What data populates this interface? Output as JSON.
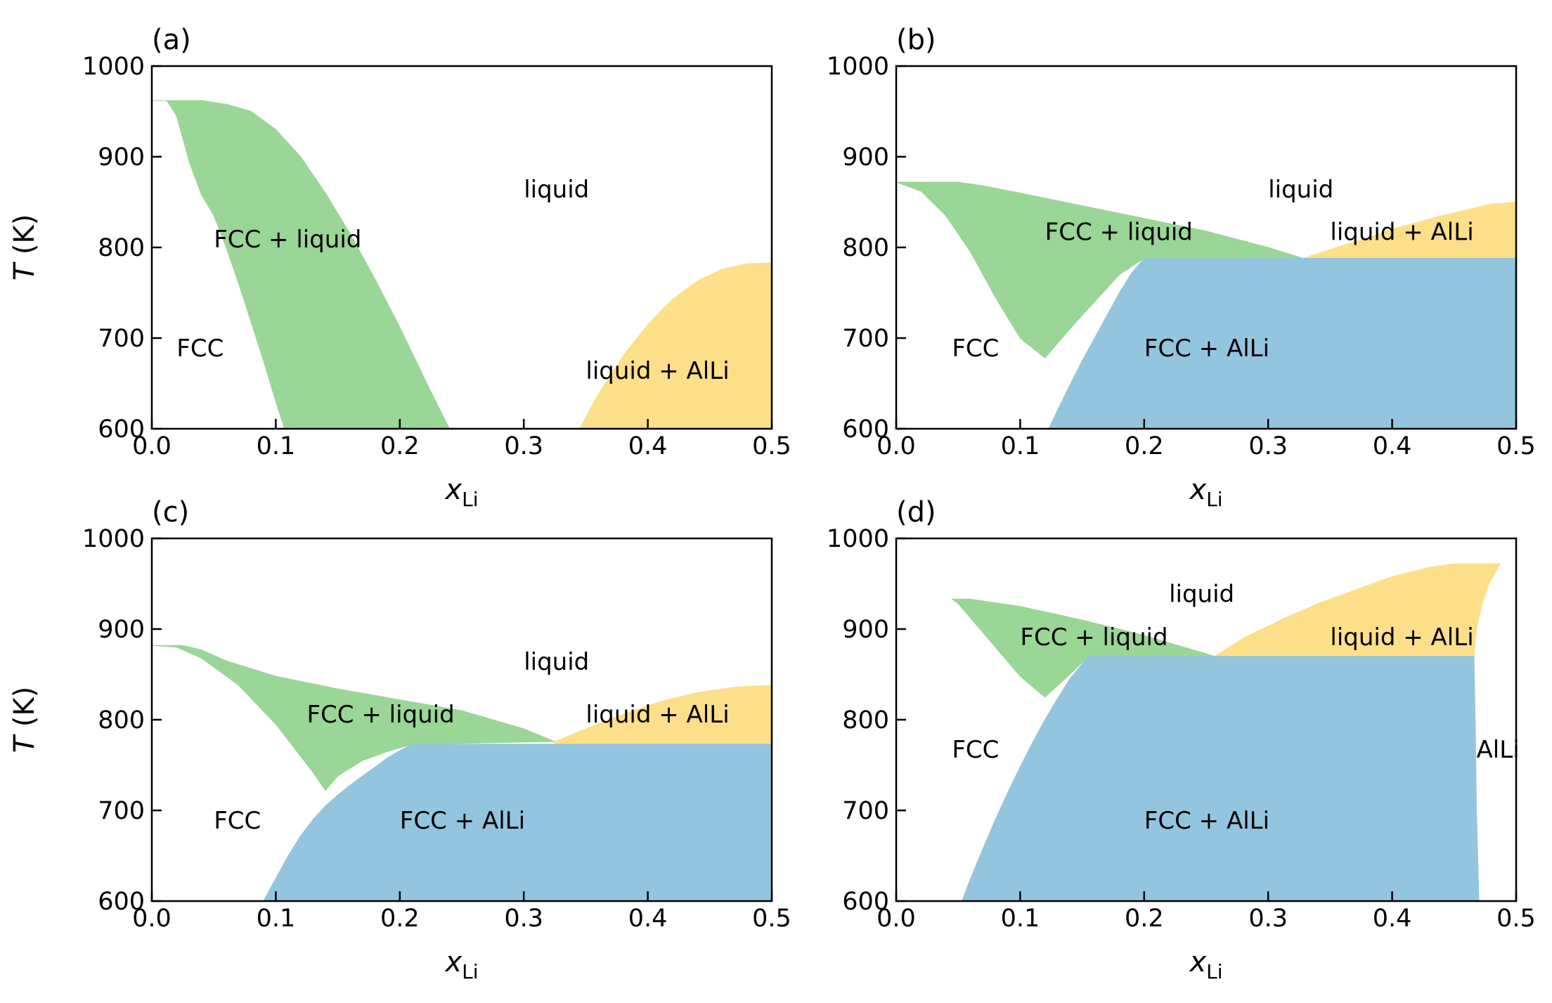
{
  "colors": {
    "fcc_liquid": "#9ad695",
    "liquid_alli": "#fddf8a",
    "fcc_alli": "#94c5de",
    "axis": "#000000"
  },
  "chart_data": [
    {
      "type": "area",
      "panel_label": "(a)",
      "xlabel": "x",
      "xlabel_sub": "Li",
      "ylabel": "T (K)",
      "xlim": [
        0.0,
        0.5
      ],
      "ylim": [
        600,
        1000
      ],
      "xticks": [
        "0.0",
        "0.1",
        "0.2",
        "0.3",
        "0.4",
        "0.5"
      ],
      "yticks": [
        "600",
        "700",
        "800",
        "900",
        "1000"
      ],
      "regions": [
        {
          "name": "FCC + liquid",
          "color": "fcc_liquid",
          "polygon": [
            [
              0.0,
              962
            ],
            [
              0.012,
              962
            ],
            [
              0.02,
              945
            ],
            [
              0.03,
              895
            ],
            [
              0.04,
              858
            ],
            [
              0.05,
              835
            ],
            [
              0.06,
              800
            ],
            [
              0.07,
              760
            ],
            [
              0.08,
              718
            ],
            [
              0.09,
              675
            ],
            [
              0.1,
              630
            ],
            [
              0.107,
              600
            ],
            [
              0.24,
              600
            ],
            [
              0.22,
              655
            ],
            [
              0.2,
              712
            ],
            [
              0.18,
              765
            ],
            [
              0.16,
              815
            ],
            [
              0.14,
              860
            ],
            [
              0.12,
              900
            ],
            [
              0.1,
              930
            ],
            [
              0.08,
              950
            ],
            [
              0.06,
              958
            ],
            [
              0.04,
              962
            ]
          ]
        },
        {
          "name": "liquid + AlLi",
          "color": "liquid_alli",
          "polygon": [
            [
              0.345,
              600
            ],
            [
              0.36,
              638
            ],
            [
              0.38,
              680
            ],
            [
              0.4,
              715
            ],
            [
              0.42,
              743
            ],
            [
              0.44,
              763
            ],
            [
              0.46,
              776
            ],
            [
              0.48,
              782
            ],
            [
              0.5,
              783
            ],
            [
              0.5,
              600
            ]
          ]
        }
      ],
      "labels": [
        {
          "text": "liquid",
          "x": 0.3,
          "y": 855
        },
        {
          "text": "FCC + liquid",
          "x": 0.05,
          "y": 800
        },
        {
          "text": "FCC",
          "x": 0.02,
          "y": 680
        },
        {
          "text": "liquid + AlLi",
          "x": 0.35,
          "y": 655
        }
      ]
    },
    {
      "type": "area",
      "panel_label": "(b)",
      "xlabel": "x",
      "xlabel_sub": "Li",
      "ylabel": "",
      "xlim": [
        0.0,
        0.5
      ],
      "ylim": [
        600,
        1000
      ],
      "xticks": [
        "0.0",
        "0.1",
        "0.2",
        "0.3",
        "0.4",
        "0.5"
      ],
      "yticks": [
        "600",
        "700",
        "800",
        "900",
        "1000"
      ],
      "regions": [
        {
          "name": "FCC + liquid",
          "color": "fcc_liquid",
          "polygon": [
            [
              0.0,
              872
            ],
            [
              0.05,
              872
            ],
            [
              0.07,
              868
            ],
            [
              0.1,
              860
            ],
            [
              0.15,
              846
            ],
            [
              0.2,
              832
            ],
            [
              0.25,
              818
            ],
            [
              0.3,
              800
            ],
            [
              0.328,
              788
            ],
            [
              0.2,
              788
            ],
            [
              0.18,
              770
            ],
            [
              0.16,
              740
            ],
            [
              0.14,
              710
            ],
            [
              0.12,
              678
            ],
            [
              0.1,
              700
            ],
            [
              0.08,
              745
            ],
            [
              0.06,
              795
            ],
            [
              0.04,
              835
            ],
            [
              0.02,
              862
            ]
          ]
        },
        {
          "name": "liquid + AlLi",
          "color": "liquid_alli",
          "polygon": [
            [
              0.328,
              788
            ],
            [
              0.36,
              802
            ],
            [
              0.4,
              820
            ],
            [
              0.44,
              835
            ],
            [
              0.48,
              848
            ],
            [
              0.5,
              850
            ],
            [
              0.5,
              788
            ]
          ]
        },
        {
          "name": "FCC + AlLi",
          "color": "fcc_alli",
          "polygon": [
            [
              0.123,
              600
            ],
            [
              0.13,
              620
            ],
            [
              0.14,
              648
            ],
            [
              0.15,
              675
            ],
            [
              0.16,
              700
            ],
            [
              0.17,
              725
            ],
            [
              0.18,
              750
            ],
            [
              0.19,
              772
            ],
            [
              0.2,
              788
            ],
            [
              0.5,
              788
            ],
            [
              0.5,
              600
            ]
          ]
        }
      ],
      "labels": [
        {
          "text": "liquid",
          "x": 0.3,
          "y": 855
        },
        {
          "text": "FCC + liquid",
          "x": 0.12,
          "y": 808
        },
        {
          "text": "liquid + AlLi",
          "x": 0.35,
          "y": 808
        },
        {
          "text": "FCC",
          "x": 0.045,
          "y": 680
        },
        {
          "text": "FCC + AlLi",
          "x": 0.2,
          "y": 680
        }
      ]
    },
    {
      "type": "area",
      "panel_label": "(c)",
      "xlabel": "x",
      "xlabel_sub": "Li",
      "ylabel": "T (K)",
      "xlim": [
        0.0,
        0.5
      ],
      "ylim": [
        600,
        1000
      ],
      "xticks": [
        "0.0",
        "0.1",
        "0.2",
        "0.3",
        "0.4",
        "0.5"
      ],
      "yticks": [
        "600",
        "700",
        "800",
        "900",
        "1000"
      ],
      "regions": [
        {
          "name": "FCC + liquid",
          "color": "fcc_liquid",
          "polygon": [
            [
              0.0,
              882
            ],
            [
              0.025,
              882
            ],
            [
              0.04,
              877
            ],
            [
              0.06,
              865
            ],
            [
              0.1,
              848
            ],
            [
              0.15,
              834
            ],
            [
              0.2,
              822
            ],
            [
              0.25,
              810
            ],
            [
              0.3,
              790
            ],
            [
              0.325,
              776
            ],
            [
              0.215,
              773
            ],
            [
              0.21,
              773
            ],
            [
              0.19,
              765
            ],
            [
              0.17,
              755
            ],
            [
              0.15,
              738
            ],
            [
              0.14,
              722
            ],
            [
              0.13,
              742
            ],
            [
              0.1,
              795
            ],
            [
              0.07,
              838
            ],
            [
              0.04,
              868
            ],
            [
              0.02,
              880
            ]
          ]
        },
        {
          "name": "liquid + AlLi",
          "color": "liquid_alli",
          "polygon": [
            [
              0.325,
              776
            ],
            [
              0.35,
              790
            ],
            [
              0.38,
              806
            ],
            [
              0.41,
              820
            ],
            [
              0.44,
              830
            ],
            [
              0.47,
              836
            ],
            [
              0.5,
              838
            ],
            [
              0.5,
              773
            ],
            [
              0.325,
              773
            ]
          ]
        },
        {
          "name": "FCC + AlLi",
          "color": "fcc_alli",
          "polygon": [
            [
              0.09,
              600
            ],
            [
              0.1,
              625
            ],
            [
              0.11,
              650
            ],
            [
              0.12,
              672
            ],
            [
              0.13,
              690
            ],
            [
              0.14,
              705
            ],
            [
              0.15,
              717
            ],
            [
              0.16,
              728
            ],
            [
              0.17,
              738
            ],
            [
              0.18,
              748
            ],
            [
              0.19,
              758
            ],
            [
              0.2,
              766
            ],
            [
              0.21,
              773
            ],
            [
              0.5,
              773
            ],
            [
              0.5,
              600
            ]
          ]
        }
      ],
      "labels": [
        {
          "text": "liquid",
          "x": 0.3,
          "y": 855
        },
        {
          "text": "FCC + liquid",
          "x": 0.125,
          "y": 797
        },
        {
          "text": "liquid + AlLi",
          "x": 0.35,
          "y": 797
        },
        {
          "text": "FCC",
          "x": 0.05,
          "y": 680
        },
        {
          "text": "FCC + AlLi",
          "x": 0.2,
          "y": 680
        }
      ]
    },
    {
      "type": "area",
      "panel_label": "(d)",
      "xlabel": "x",
      "xlabel_sub": "Li",
      "ylabel": "",
      "xlim": [
        0.0,
        0.5
      ],
      "ylim": [
        600,
        1000
      ],
      "xticks": [
        "0.0",
        "0.1",
        "0.2",
        "0.3",
        "0.4",
        "0.5"
      ],
      "yticks": [
        "600",
        "700",
        "800",
        "900",
        "1000"
      ],
      "regions": [
        {
          "name": "FCC + liquid",
          "color": "fcc_liquid",
          "polygon": [
            [
              0.045,
              933
            ],
            [
              0.06,
              933
            ],
            [
              0.1,
              925
            ],
            [
              0.15,
              910
            ],
            [
              0.2,
              893
            ],
            [
              0.257,
              870
            ],
            [
              0.155,
              870
            ],
            [
              0.14,
              850
            ],
            [
              0.12,
              825
            ],
            [
              0.1,
              848
            ],
            [
              0.08,
              880
            ],
            [
              0.06,
              912
            ],
            [
              0.05,
              928
            ]
          ]
        },
        {
          "name": "liquid + AlLi",
          "color": "liquid_alli",
          "polygon": [
            [
              0.257,
              870
            ],
            [
              0.28,
              890
            ],
            [
              0.31,
              910
            ],
            [
              0.34,
              928
            ],
            [
              0.37,
              943
            ],
            [
              0.4,
              958
            ],
            [
              0.43,
              968
            ],
            [
              0.45,
              972
            ],
            [
              0.487,
              972
            ],
            [
              0.478,
              950
            ],
            [
              0.472,
              925
            ],
            [
              0.468,
              900
            ],
            [
              0.466,
              870
            ]
          ]
        },
        {
          "name": "FCC + AlLi",
          "color": "fcc_alli",
          "polygon": [
            [
              0.053,
              600
            ],
            [
              0.06,
              625
            ],
            [
              0.07,
              658
            ],
            [
              0.08,
              690
            ],
            [
              0.09,
              720
            ],
            [
              0.1,
              748
            ],
            [
              0.11,
              775
            ],
            [
              0.12,
              800
            ],
            [
              0.13,
              823
            ],
            [
              0.14,
              845
            ],
            [
              0.155,
              870
            ],
            [
              0.466,
              870
            ],
            [
              0.467,
              800
            ],
            [
              0.468,
              700
            ],
            [
              0.47,
              600
            ]
          ]
        }
      ],
      "labels": [
        {
          "text": "liquid",
          "x": 0.22,
          "y": 930
        },
        {
          "text": "FCC + liquid",
          "x": 0.1,
          "y": 882
        },
        {
          "text": "liquid + AlLi",
          "x": 0.35,
          "y": 882
        },
        {
          "text": "FCC",
          "x": 0.045,
          "y": 758
        },
        {
          "text": "AlLi",
          "x": 0.468,
          "y": 758
        },
        {
          "text": "FCC + AlLi",
          "x": 0.2,
          "y": 680
        }
      ]
    }
  ]
}
